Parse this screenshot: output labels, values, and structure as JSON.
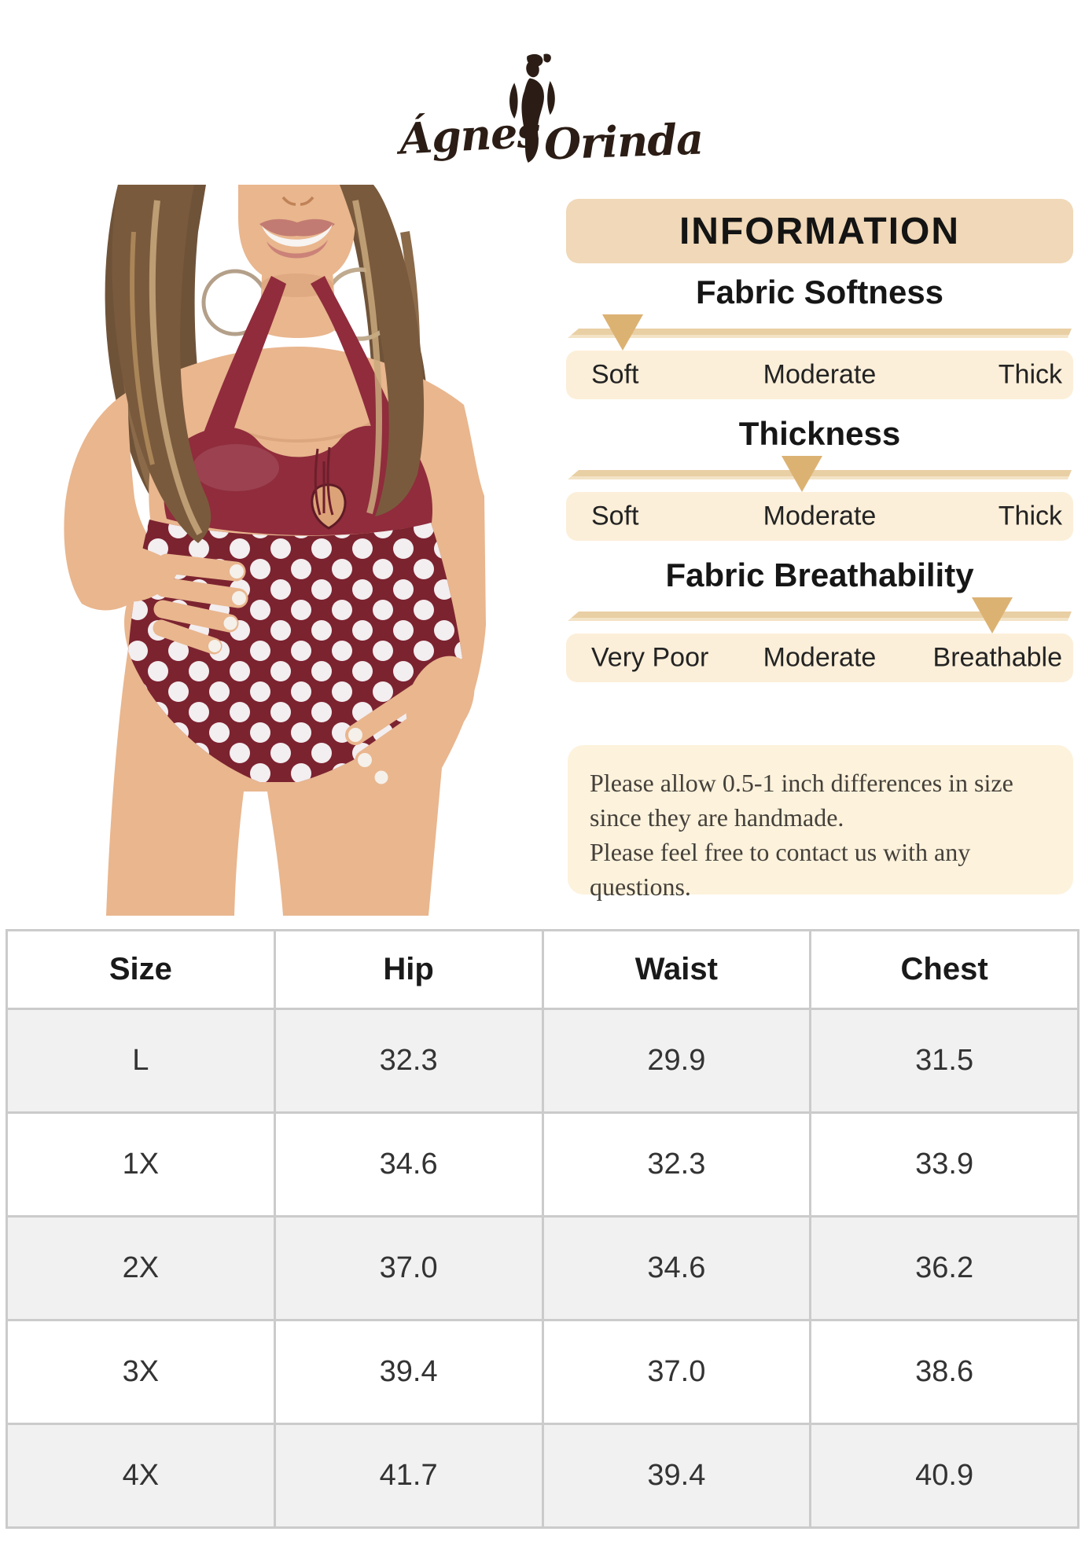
{
  "brand": {
    "script_left": "Ágnes",
    "script_right": "Orinda"
  },
  "info_panel": {
    "title": "INFORMATION",
    "gauges": [
      {
        "heading": "Fabric Softness",
        "labels": [
          "Soft",
          "Moderate",
          "Thick"
        ],
        "indicated": "Soft",
        "indicator_pct": 11.2
      },
      {
        "heading": "Thickness",
        "labels": [
          "Soft",
          "Moderate",
          "Thick"
        ],
        "indicated": "Moderate",
        "indicator_pct": 46.5
      },
      {
        "heading": "Fabric Breathability",
        "labels": [
          "Very Poor",
          "Moderate",
          "Breathable"
        ],
        "indicated": "Breathable",
        "indicator_pct": 84.0
      }
    ],
    "note_lines": [
      "Please allow 0.5-1 inch differences in size",
      "since they are handmade.",
      "Please feel free to contact us with any questions."
    ]
  },
  "size_table": {
    "columns": [
      "Size",
      "Hip",
      "Waist",
      "Chest"
    ],
    "rows": [
      [
        "L",
        "32.3",
        "29.9",
        "31.5"
      ],
      [
        "1X",
        "34.6",
        "32.3",
        "33.9"
      ],
      [
        "2X",
        "37.0",
        "34.6",
        "36.2"
      ],
      [
        "3X",
        "39.4",
        "37.0",
        "38.6"
      ],
      [
        "4X",
        "41.7",
        "39.4",
        "40.9"
      ]
    ]
  },
  "colors": {
    "panel_title_bg": "#f0d8b8",
    "gauge_track": "#e9cfa4",
    "gauge_indicator": "#dcb273",
    "gauge_bar_bg": "#fcefd9",
    "note_bg": "#fdf2dc",
    "table_border": "#cbcbcb",
    "table_row_alt": "#f1f1f1",
    "swimsuit_top": "#902c3c",
    "swimsuit_bottom": "#7c2330",
    "logo_brown": "#2b1d15"
  }
}
